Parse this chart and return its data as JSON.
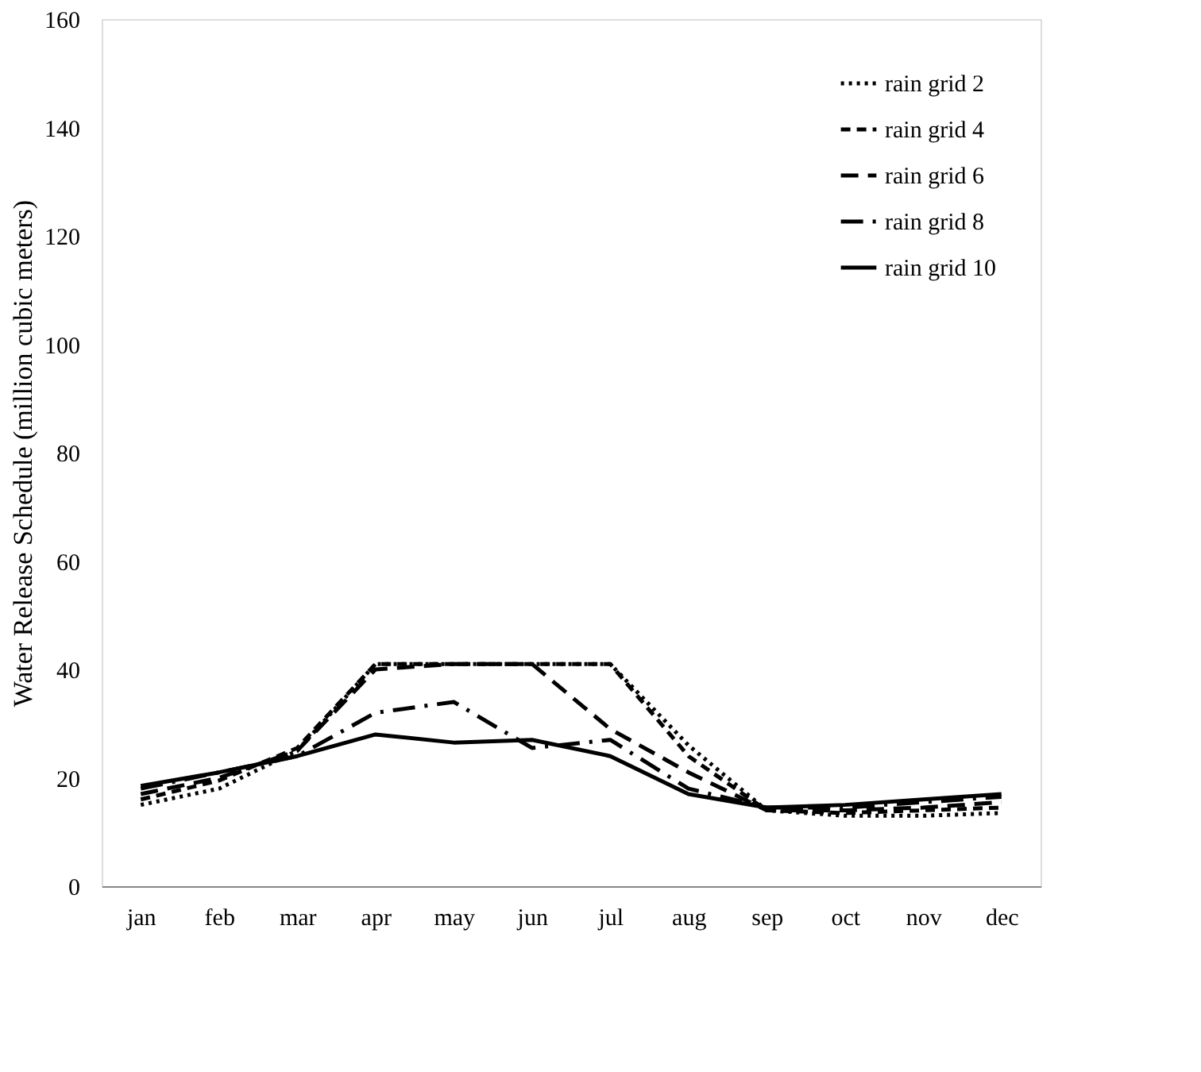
{
  "chart_data": {
    "type": "line",
    "ylabel": "Water Release Schedule (million cubic meters)",
    "categories": [
      "jan",
      "feb",
      "mar",
      "apr",
      "may",
      "jun",
      "jul",
      "aug",
      "sep",
      "oct",
      "nov",
      "dec"
    ],
    "series": [
      {
        "name": "rain grid 2",
        "color": "#000000",
        "line_style": "dotted",
        "values": [
          15,
          18,
          25,
          41,
          41,
          41,
          41,
          26,
          14,
          13,
          13,
          13.5
        ]
      },
      {
        "name": "rain grid 4",
        "color": "#000000",
        "line_style": "dashed",
        "values": [
          16,
          19.5,
          25.5,
          41,
          41,
          41,
          41,
          24,
          14,
          13.5,
          14,
          14.5
        ]
      },
      {
        "name": "rain grid 6",
        "color": "#000000",
        "line_style": "dashed",
        "values": [
          17,
          20,
          25,
          40,
          41,
          41,
          29,
          21,
          14,
          14,
          14.5,
          15.5
        ]
      },
      {
        "name": "rain grid 8",
        "color": "#000000",
        "line_style": "dashed",
        "values": [
          18,
          21,
          24,
          32,
          34,
          25.5,
          27,
          18,
          14.5,
          14.5,
          15.5,
          16.5
        ]
      },
      {
        "name": "rain grid 10",
        "color": "#000000",
        "line_style": "solid",
        "values": [
          18.5,
          21,
          24,
          28,
          26.5,
          27,
          24,
          17,
          14.5,
          15,
          16,
          17
        ]
      }
    ],
    "ylim": [
      0,
      160
    ],
    "yticks": [
      0,
      20,
      40,
      60,
      80,
      100,
      120,
      140,
      160
    ],
    "grid": false,
    "legend": "top right",
    "marker": "none"
  }
}
